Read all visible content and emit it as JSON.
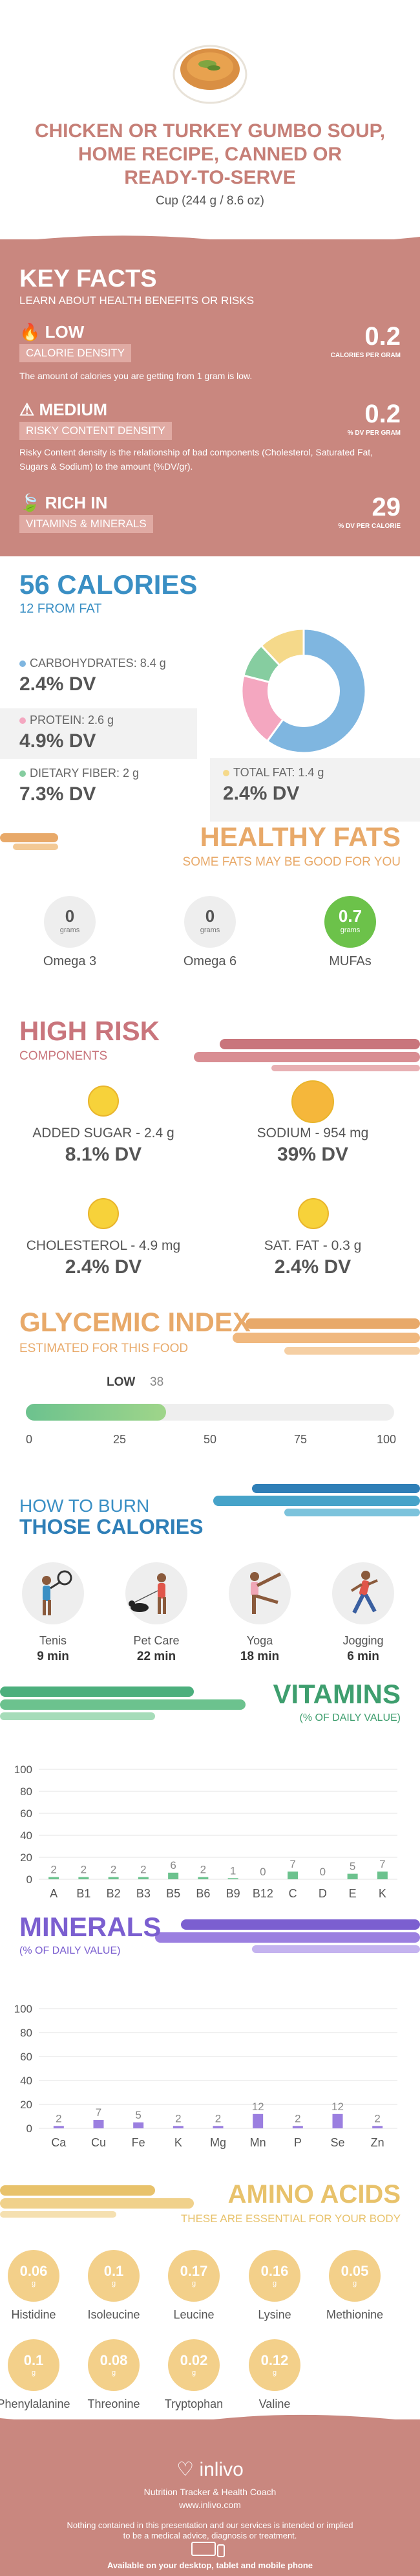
{
  "header": {
    "title_lines": [
      "CHICKEN OR TURKEY GUMBO SOUP,",
      "HOME RECIPE, CANNED OR",
      "READY-TO-SERVE"
    ],
    "serving": "Cup (244 g / 8.6 oz)"
  },
  "key_facts": {
    "title": "KEY FACTS",
    "subtitle": "LEARN ABOUT HEALTH BENEFITS OR RISKS",
    "calorie_density": {
      "level": "LOW",
      "label": "CALORIE DENSITY",
      "value": "0.2",
      "unit": "CALORIES PER GRAM",
      "desc": "The amount of calories you are getting from 1 gram is low."
    },
    "risky_density": {
      "level": "MEDIUM",
      "label": "RISKY CONTENT DENSITY",
      "value": "0.2",
      "unit": "% DV PER GRAM",
      "desc": "Risky Content density is the relationship of bad components (Cholesterol, Saturated Fat, Sugars & Sodium) to the amount (%DV/gr)."
    },
    "rich_in": {
      "level": "RICH IN",
      "label": "VITAMINS & MINERALS",
      "value": "29",
      "unit": "% DV PER CALORIE"
    }
  },
  "calories": {
    "title": "56 CALORIES",
    "subtitle": "12 FROM FAT",
    "carbs": {
      "label": "CARBOHYDRATES: 8.4 g",
      "dv": "2.4% DV",
      "color": "#7fb6e0"
    },
    "protein": {
      "label": "PROTEIN: 2.6 g",
      "dv": "4.9% DV",
      "color": "#f4a7c0"
    },
    "fiber": {
      "label": "DIETARY FIBER: 2 g",
      "dv": "7.3% DV",
      "color": "#86cda0"
    },
    "fat": {
      "label": "TOTAL FAT: 1.4 g",
      "dv": "2.4% DV",
      "color": "#f5d98a"
    }
  },
  "healthy_fats": {
    "title": "HEALTHY FATS",
    "subtitle": "SOME FATS MAY BE GOOD FOR YOU",
    "items": [
      {
        "name": "Omega 3",
        "value": "0",
        "unit": "grams"
      },
      {
        "name": "Omega 6",
        "value": "0",
        "unit": "grams"
      },
      {
        "name": "MUFAs",
        "value": "0.7",
        "unit": "grams"
      }
    ]
  },
  "high_risk": {
    "title": "HIGH RISK",
    "subtitle": "COMPONENTS",
    "items": [
      {
        "label": "ADDED SUGAR - 2.4 g",
        "dv": "8.1% DV"
      },
      {
        "label": "SODIUM - 954 mg",
        "dv": "39% DV"
      },
      {
        "label": "CHOLESTEROL - 4.9 mg",
        "dv": "2.4% DV"
      },
      {
        "label": "SAT. FAT - 0.3 g",
        "dv": "2.4% DV"
      }
    ]
  },
  "glycemic": {
    "title": "GLYCEMIC INDEX",
    "subtitle": "ESTIMATED FOR THIS FOOD",
    "level": "LOW",
    "value": 38,
    "value_label": "38",
    "ticks": [
      "0",
      "25",
      "50",
      "75",
      "100"
    ]
  },
  "burn": {
    "title_line1": "HOW TO BURN",
    "title_line2": "THOSE CALORIES",
    "activities": [
      {
        "name": "Tenis",
        "minutes": "9 min"
      },
      {
        "name": "Pet Care",
        "minutes": "22 min"
      },
      {
        "name": "Yoga",
        "minutes": "18 min"
      },
      {
        "name": "Jogging",
        "minutes": "6 min"
      }
    ]
  },
  "chart_data": [
    {
      "type": "bar",
      "title": "VITAMINS",
      "subtitle": "(% OF DAILY VALUE)",
      "categories": [
        "A",
        "B1",
        "B2",
        "B3",
        "B5",
        "B6",
        "B9",
        "B12",
        "C",
        "D",
        "E",
        "K"
      ],
      "values": [
        2,
        2,
        2,
        2,
        6,
        2,
        1,
        0,
        7,
        0,
        5,
        7
      ],
      "value_labels": [
        "2",
        "2",
        "2",
        "2",
        "6",
        "2",
        "1",
        "0",
        "7",
        "0",
        "5",
        "7"
      ],
      "yticks": [
        "0",
        "20",
        "40",
        "60",
        "80",
        "100"
      ],
      "ylim": [
        0,
        100
      ],
      "color": "#6cc28e"
    },
    {
      "type": "bar",
      "title": "MINERALS",
      "subtitle": "(% OF DAILY VALUE)",
      "categories": [
        "Ca",
        "Cu",
        "Fe",
        "K",
        "Mg",
        "Mn",
        "P",
        "Se",
        "Zn"
      ],
      "values": [
        2,
        7,
        5,
        2,
        2,
        12,
        2,
        12,
        2
      ],
      "value_labels": [
        "2",
        "7",
        "5",
        "2",
        "2",
        "12",
        "2",
        "12",
        "2"
      ],
      "yticks": [
        "0",
        "20",
        "40",
        "60",
        "80",
        "100"
      ],
      "ylim": [
        0,
        100
      ],
      "color": "#9b7fe0"
    }
  ],
  "amino": {
    "title": "AMINO ACIDS",
    "subtitle": "THESE ARE ESSENTIAL FOR YOUR BODY",
    "items": [
      {
        "name": "Histidine",
        "value": "0.06",
        "unit": "g"
      },
      {
        "name": "Isoleucine",
        "value": "0.1",
        "unit": "g"
      },
      {
        "name": "Leucine",
        "value": "0.17",
        "unit": "g"
      },
      {
        "name": "Lysine",
        "value": "0.16",
        "unit": "g"
      },
      {
        "name": "Methionine",
        "value": "0.05",
        "unit": "g"
      },
      {
        "name": "Phenylalanine",
        "value": "0.1",
        "unit": "g"
      },
      {
        "name": "Threonine",
        "value": "0.08",
        "unit": "g"
      },
      {
        "name": "Tryptophan",
        "value": "0.02",
        "unit": "g"
      },
      {
        "name": "Valine",
        "value": "0.12",
        "unit": "g"
      }
    ]
  },
  "footer": {
    "brand": "inlivo",
    "tagline": "Nutrition Tracker & Health Coach",
    "url": "www.inlivo.com",
    "disclaimer_1": "Nothing contained in this presentation and our services is intended or implied",
    "disclaimer_2": "to be a medical advice, diagnosis or treatment.",
    "available": "Available on your desktop, tablet and mobile phone"
  }
}
